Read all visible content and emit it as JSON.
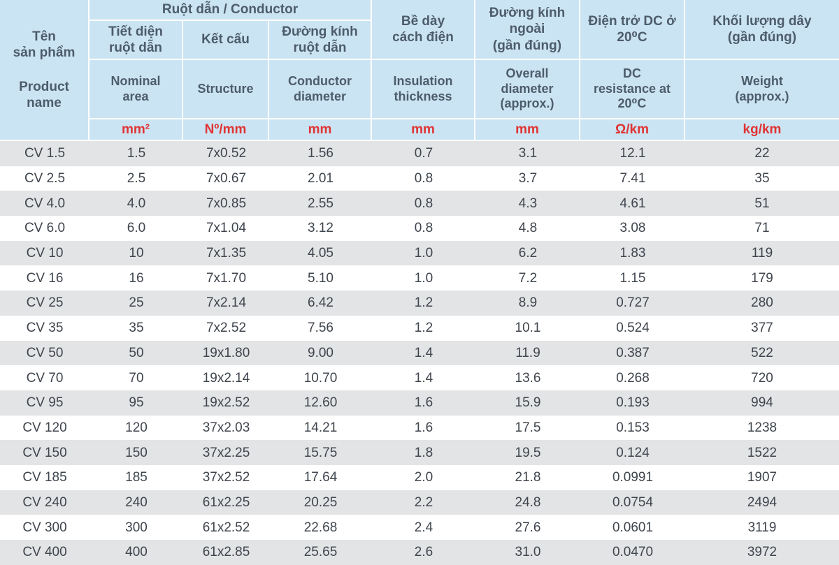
{
  "colors": {
    "header_bg": "#cbe4f3",
    "header_text": "#4d5c6b",
    "unit_text": "#e03434",
    "row_alt_bg": "#e3e4e6",
    "row_bg": "#ffffff",
    "data_text": "#3f454d",
    "border": "#ffffff"
  },
  "chart_data": {
    "type": "table",
    "title": "CV cable specification table (bilingual Vietnamese / English)",
    "layout": {
      "header_rows": 4,
      "data_rows": 17,
      "columns": 8,
      "alternating_row_shading": true,
      "first_data_row_shaded": true
    },
    "header": {
      "product": {
        "vi": "Tên\nsản phẩm",
        "en": "Product\nname"
      },
      "group_conductor": "Ruột dẫn / Conductor",
      "cols": [
        {
          "vi": "Tiết diện\nruột dẫn",
          "en": "Nominal\narea",
          "unit": "mm²"
        },
        {
          "vi": "Kết cấu",
          "en": "Structure",
          "unit": "Nº/mm"
        },
        {
          "vi": "Đường kính\nruột dẫn",
          "en": "Conductor\ndiameter",
          "unit": "mm"
        },
        {
          "vi": "Bề dày\ncách điện",
          "en": "Insulation\nthickness",
          "unit": "mm"
        },
        {
          "vi": "Đường kính\nngoài\n(gần đúng)",
          "en": "Overall\ndiameter\n(approx.)",
          "unit": "mm"
        },
        {
          "vi": "Điện trở DC ở\n20⁰C",
          "en": "DC\nresistance at\n20⁰C",
          "unit": "Ω/km"
        },
        {
          "vi": "Khối lượng dây\n(gần đúng)",
          "en": "Weight\n(approx.)",
          "unit": "kg/km"
        }
      ]
    },
    "rows": [
      [
        "CV 1.5",
        "1.5",
        "7x0.52",
        "1.56",
        "0.7",
        "3.1",
        "12.1",
        "22"
      ],
      [
        "CV 2.5",
        "2.5",
        "7x0.67",
        "2.01",
        "0.8",
        "3.7",
        "7.41",
        "35"
      ],
      [
        "CV 4.0",
        "4.0",
        "7x0.85",
        "2.55",
        "0.8",
        "4.3",
        "4.61",
        "51"
      ],
      [
        "CV 6.0",
        "6.0",
        "7x1.04",
        "3.12",
        "0.8",
        "4.8",
        "3.08",
        "71"
      ],
      [
        "CV 10",
        "10",
        "7x1.35",
        "4.05",
        "1.0",
        "6.2",
        "1.83",
        "119"
      ],
      [
        "CV 16",
        "16",
        "7x1.70",
        "5.10",
        "1.0",
        "7.2",
        "1.15",
        "179"
      ],
      [
        "CV 25",
        "25",
        "7x2.14",
        "6.42",
        "1.2",
        "8.9",
        "0.727",
        "280"
      ],
      [
        "CV 35",
        "35",
        "7x2.52",
        "7.56",
        "1.2",
        "10.1",
        "0.524",
        "377"
      ],
      [
        "CV 50",
        "50",
        "19x1.80",
        "9.00",
        "1.4",
        "11.9",
        "0.387",
        "522"
      ],
      [
        "CV 70",
        "70",
        "19x2.14",
        "10.70",
        "1.4",
        "13.6",
        "0.268",
        "720"
      ],
      [
        "CV 95",
        "95",
        "19x2.52",
        "12.60",
        "1.6",
        "15.9",
        "0.193",
        "994"
      ],
      [
        "CV 120",
        "120",
        "37x2.03",
        "14.21",
        "1.6",
        "17.5",
        "0.153",
        "1238"
      ],
      [
        "CV 150",
        "150",
        "37x2.25",
        "15.75",
        "1.8",
        "19.5",
        "0.124",
        "1522"
      ],
      [
        "CV 185",
        "185",
        "37x2.52",
        "17.64",
        "2.0",
        "21.8",
        "0.0991",
        "1907"
      ],
      [
        "CV 240",
        "240",
        "61x2.25",
        "20.25",
        "2.2",
        "24.8",
        "0.0754",
        "2494"
      ],
      [
        "CV 300",
        "300",
        "61x2.52",
        "22.68",
        "2.4",
        "27.6",
        "0.0601",
        "3119"
      ],
      [
        "CV 400",
        "400",
        "61x2.85",
        "25.65",
        "2.6",
        "31.0",
        "0.0470",
        "3972"
      ]
    ]
  }
}
